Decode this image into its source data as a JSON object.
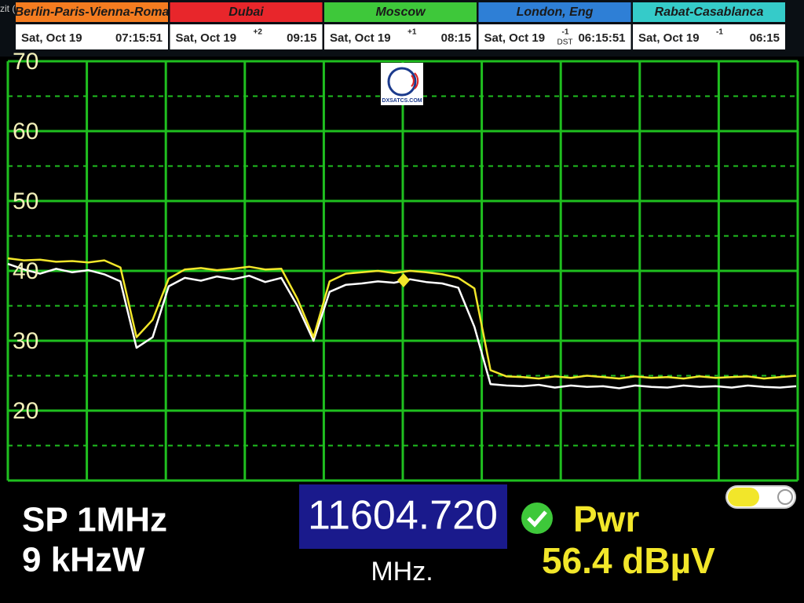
{
  "corner_text": "zit (",
  "clocks": [
    {
      "name": "Berlin-Paris-Vienna-Roma",
      "color": "#f47c20",
      "date": "Sat, Oct 19",
      "offset": null,
      "dst": null,
      "time": "07:15:51"
    },
    {
      "name": "Dubai",
      "color": "#e8262b",
      "date": "Sat, Oct 19",
      "offset": "+2",
      "dst": null,
      "time": "09:15"
    },
    {
      "name": "Moscow",
      "color": "#3ec83a",
      "date": "Sat, Oct 19",
      "offset": "+1",
      "dst": null,
      "time": "08:15"
    },
    {
      "name": "London, Eng",
      "color": "#2e7fd6",
      "date": "Sat, Oct 19",
      "offset": "-1",
      "dst": "DST",
      "time": "06:15:51"
    },
    {
      "name": "Rabat-Casablanca",
      "color": "#35cbc9",
      "date": "Sat, Oct 19",
      "offset": "-1",
      "dst": null,
      "time": "06:15"
    }
  ],
  "logo_text": "DXSATCS.COM",
  "chart_data": {
    "type": "line",
    "categories": [
      null,
      null,
      null,
      null,
      null,
      null,
      null,
      null,
      null,
      null,
      null,
      null,
      null,
      null,
      null,
      null,
      null,
      null,
      null,
      null,
      null,
      null,
      null,
      null,
      null,
      null,
      null,
      null,
      null,
      null,
      null,
      null,
      null,
      null,
      null,
      null,
      null,
      null,
      null,
      null,
      null,
      null,
      null,
      null,
      null,
      null,
      null,
      null,
      null,
      null
    ],
    "series": [
      {
        "color": "#ffffff",
        "values": [
          41,
          40.2,
          39.6,
          40.3,
          39.8,
          40.1,
          39.5,
          38.5,
          29,
          30.5,
          37.8,
          39,
          38.6,
          39.2,
          38.8,
          39.3,
          38.4,
          39,
          35,
          30,
          37,
          38,
          38.2,
          38.5,
          38.3,
          38.8,
          38.4,
          38.2,
          37.6,
          32,
          23.8,
          23.6,
          23.5,
          23.7,
          23.3,
          23.6,
          23.4,
          23.5,
          23.2,
          23.6,
          23.4,
          23.3,
          23.6,
          23.4,
          23.5,
          23.3,
          23.6,
          23.4,
          23.3,
          23.5
        ]
      },
      {
        "color": "#f2e62a",
        "values": [
          41.8,
          41.5,
          41.6,
          41.3,
          41.4,
          41.2,
          41.5,
          40.5,
          30.5,
          33,
          38.9,
          40.2,
          40.4,
          40.1,
          40.3,
          40.6,
          40.2,
          40.3,
          36,
          30.5,
          38.5,
          39.6,
          39.8,
          40,
          39.7,
          40,
          39.8,
          39.5,
          39,
          37.5,
          25.8,
          24.9,
          24.8,
          24.6,
          24.9,
          24.7,
          25,
          24.8,
          24.6,
          24.9,
          24.7,
          24.8,
          24.6,
          24.9,
          24.7,
          24.8,
          24.9,
          24.6,
          24.8,
          25
        ]
      }
    ],
    "ylim": [
      10,
      70
    ],
    "yticks": [
      20,
      30,
      40,
      50,
      60,
      70
    ],
    "minor_yticks": [
      15,
      25,
      35,
      45,
      55,
      65
    ],
    "grid": true,
    "grid_color": "#1fbf1f"
  },
  "readout": {
    "span": "SP 1MHz",
    "rbw": "9 kHzW",
    "frequency": "11604.720",
    "unit": "MHz.",
    "power_label": "Pwr",
    "power": "56.4 dBµV"
  }
}
